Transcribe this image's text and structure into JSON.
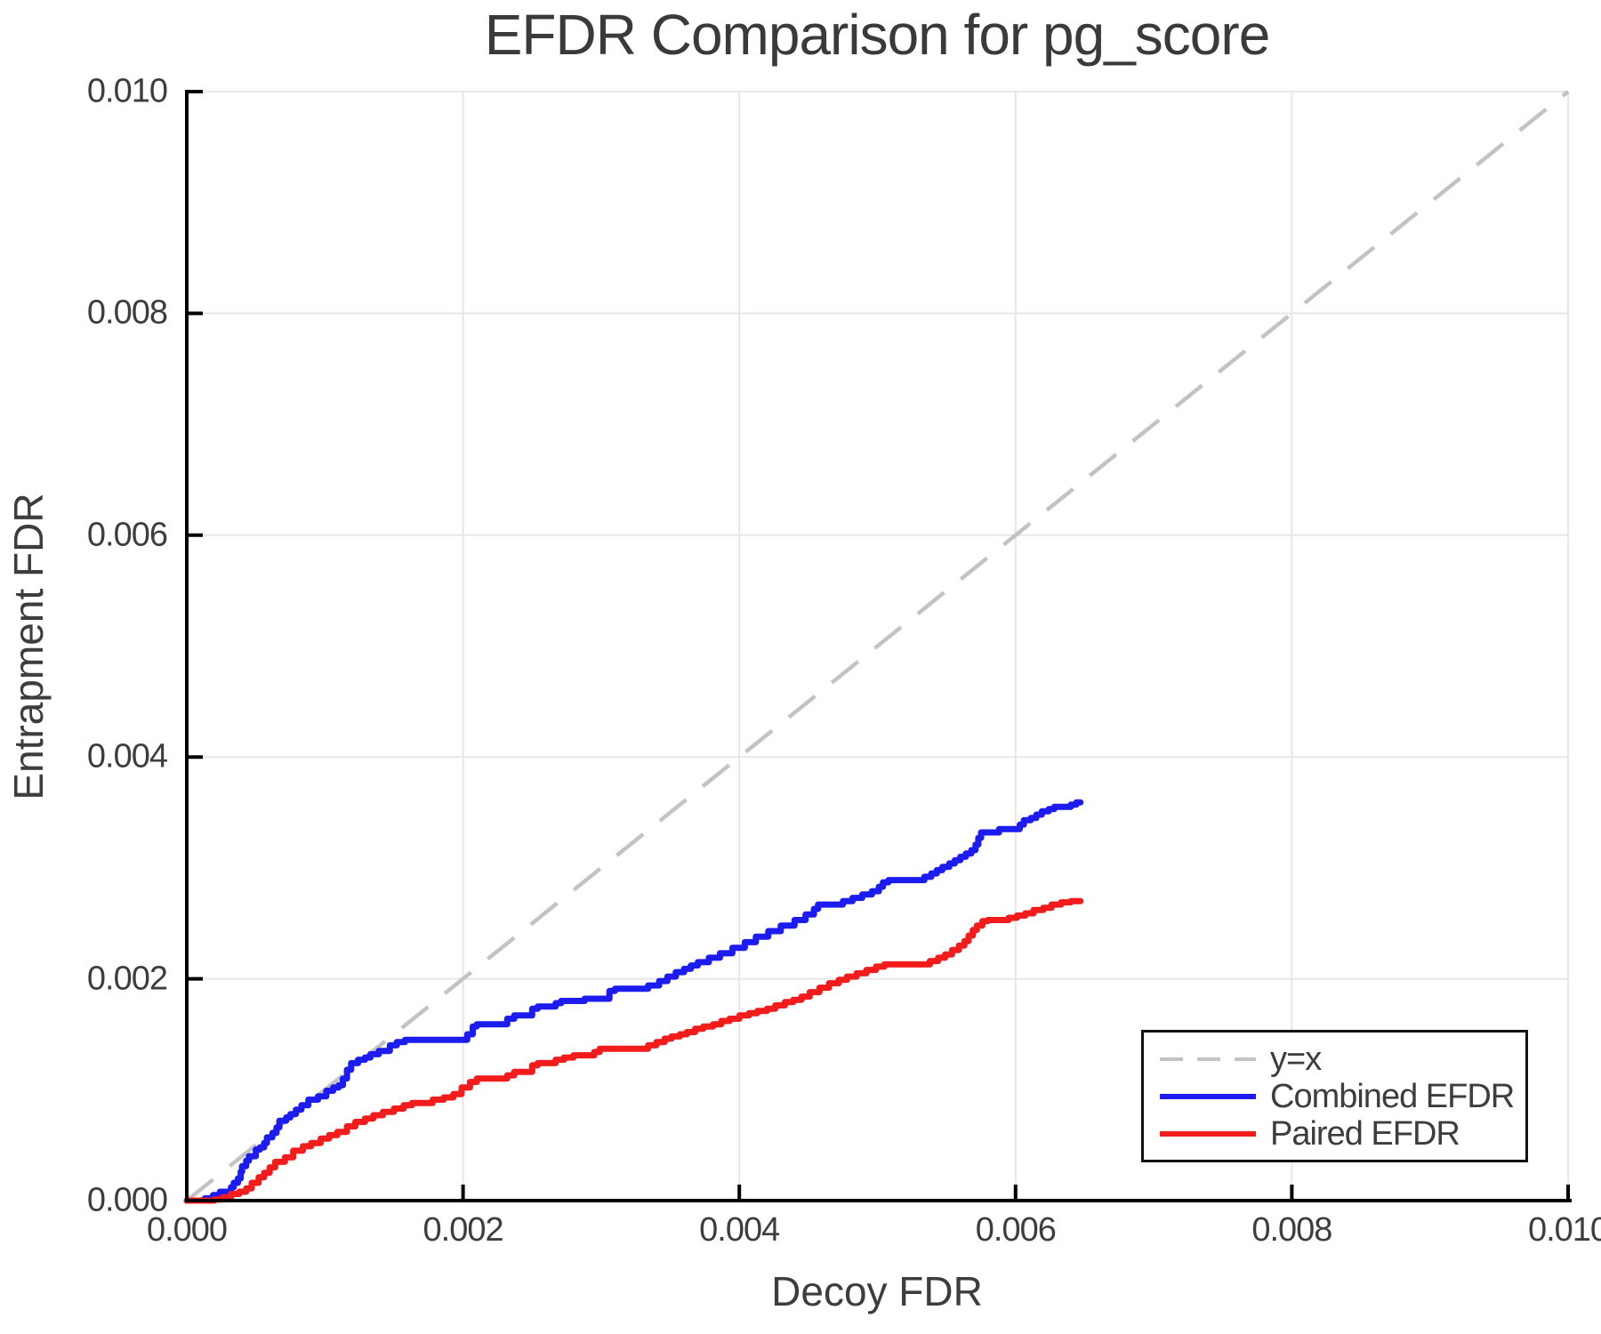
{
  "title": "EFDR Comparison for pg_score",
  "colors": {
    "background": "#ffffff",
    "grid": "#e7e7e7",
    "spine": "#000000",
    "tick": "#000000",
    "text": "#3d3d3d",
    "identity": "#c3c3c3",
    "combined": "#1c1cf0",
    "paired": "#f21c1c",
    "legend_border": "#111111"
  },
  "legend": {
    "position": "lower right",
    "entries": [
      {
        "label": "y=x",
        "color": "#c3c3c3",
        "dash": true
      },
      {
        "label": "Combined EFDR",
        "color": "#1c1cf0",
        "dash": false
      },
      {
        "label": "Paired EFDR",
        "color": "#f21c1c",
        "dash": false
      }
    ]
  },
  "chart_data": {
    "type": "line",
    "title": "EFDR Comparison for pg_score",
    "xlabel": "Decoy FDR",
    "ylabel": "Entrapment FDR",
    "xlim": [
      0.0,
      0.01
    ],
    "ylim": [
      0.0,
      0.01
    ],
    "xticks": [
      0.0,
      0.002,
      0.004,
      0.006,
      0.008,
      0.01
    ],
    "yticks": [
      0.0,
      0.002,
      0.004,
      0.006,
      0.008,
      0.01
    ],
    "xtick_labels": [
      "0.000",
      "0.002",
      "0.004",
      "0.006",
      "0.008",
      "0.010"
    ],
    "ytick_labels": [
      "0.000",
      "0.002",
      "0.004",
      "0.006",
      "0.008",
      "0.010"
    ],
    "grid": true,
    "legend_position": "lower right",
    "identity_line": {
      "name": "y=x",
      "color": "#c3c3c3",
      "dash": true,
      "points": [
        [
          0.0,
          0.0
        ],
        [
          0.01,
          0.01
        ]
      ]
    },
    "series": [
      {
        "name": "Combined EFDR",
        "color": "#1c1cf0",
        "step": true,
        "points": [
          [
            0.0,
            0.0
          ],
          [
            0.00013,
            2e-05
          ],
          [
            0.00019,
            5e-05
          ],
          [
            0.00024,
            8e-05
          ],
          [
            0.00032,
            0.00012
          ],
          [
            0.00034,
            0.00016
          ],
          [
            0.00037,
            0.0002
          ],
          [
            0.00039,
            0.00026
          ],
          [
            0.0004,
            0.00031
          ],
          [
            0.00043,
            0.00036
          ],
          [
            0.00045,
            0.0004
          ],
          [
            0.0005,
            0.00046
          ],
          [
            0.00053,
            0.00048
          ],
          [
            0.00056,
            0.00052
          ],
          [
            0.00058,
            0.00057
          ],
          [
            0.00062,
            0.00061
          ],
          [
            0.00065,
            0.00066
          ],
          [
            0.00067,
            0.00072
          ],
          [
            0.00072,
            0.00075
          ],
          [
            0.00075,
            0.00078
          ],
          [
            0.00079,
            0.00082
          ],
          [
            0.00083,
            0.00086
          ],
          [
            0.00088,
            0.00091
          ],
          [
            0.00095,
            0.00094
          ],
          [
            0.00101,
            0.00099
          ],
          [
            0.00106,
            0.00102
          ],
          [
            0.0011,
            0.00104
          ],
          [
            0.00113,
            0.0011
          ],
          [
            0.00116,
            0.00118
          ],
          [
            0.00119,
            0.00124
          ],
          [
            0.00124,
            0.00127
          ],
          [
            0.00129,
            0.00129
          ],
          [
            0.00133,
            0.00132
          ],
          [
            0.00139,
            0.00135
          ],
          [
            0.00147,
            0.0014
          ],
          [
            0.00152,
            0.00143
          ],
          [
            0.00158,
            0.00145
          ],
          [
            0.00203,
            0.0015
          ],
          [
            0.00207,
            0.00157
          ],
          [
            0.0021,
            0.00159
          ],
          [
            0.00232,
            0.00164
          ],
          [
            0.00237,
            0.00167
          ],
          [
            0.0025,
            0.00173
          ],
          [
            0.00254,
            0.00175
          ],
          [
            0.00267,
            0.00178
          ],
          [
            0.00271,
            0.0018
          ],
          [
            0.00288,
            0.00182
          ],
          [
            0.00306,
            0.00189
          ],
          [
            0.0031,
            0.00191
          ],
          [
            0.00334,
            0.00194
          ],
          [
            0.00342,
            0.00198
          ],
          [
            0.00348,
            0.00202
          ],
          [
            0.00354,
            0.00206
          ],
          [
            0.0036,
            0.00209
          ],
          [
            0.00365,
            0.00212
          ],
          [
            0.0037,
            0.00215
          ],
          [
            0.00378,
            0.00219
          ],
          [
            0.00386,
            0.00223
          ],
          [
            0.00395,
            0.00228
          ],
          [
            0.00404,
            0.00233
          ],
          [
            0.00412,
            0.00238
          ],
          [
            0.00421,
            0.00243
          ],
          [
            0.0043,
            0.00248
          ],
          [
            0.0044,
            0.00253
          ],
          [
            0.00448,
            0.00258
          ],
          [
            0.00454,
            0.00263
          ],
          [
            0.00457,
            0.00267
          ],
          [
            0.00475,
            0.0027
          ],
          [
            0.00482,
            0.00273
          ],
          [
            0.00489,
            0.00276
          ],
          [
            0.00496,
            0.00279
          ],
          [
            0.00501,
            0.00283
          ],
          [
            0.00504,
            0.00287
          ],
          [
            0.00508,
            0.00289
          ],
          [
            0.00534,
            0.00292
          ],
          [
            0.00539,
            0.00295
          ],
          [
            0.00543,
            0.00298
          ],
          [
            0.00547,
            0.00301
          ],
          [
            0.00552,
            0.00304
          ],
          [
            0.00556,
            0.00307
          ],
          [
            0.0056,
            0.0031
          ],
          [
            0.00564,
            0.00313
          ],
          [
            0.00568,
            0.00316
          ],
          [
            0.00571,
            0.00321
          ],
          [
            0.00573,
            0.00327
          ],
          [
            0.00575,
            0.00332
          ],
          [
            0.00588,
            0.00335
          ],
          [
            0.00603,
            0.00339
          ],
          [
            0.00606,
            0.00343
          ],
          [
            0.00611,
            0.00345
          ],
          [
            0.00615,
            0.00348
          ],
          [
            0.00619,
            0.00351
          ],
          [
            0.00624,
            0.00353
          ],
          [
            0.00628,
            0.00355
          ],
          [
            0.0064,
            0.00357
          ],
          [
            0.00644,
            0.00359
          ],
          [
            0.00647,
            0.00359
          ]
        ]
      },
      {
        "name": "Paired EFDR",
        "color": "#f21c1c",
        "step": true,
        "points": [
          [
            0.0,
            0.0
          ],
          [
            0.0002,
            1e-05
          ],
          [
            0.00026,
            3e-05
          ],
          [
            0.00032,
            6e-05
          ],
          [
            0.00038,
            8e-05
          ],
          [
            0.00043,
            0.00011
          ],
          [
            0.00047,
            0.00016
          ],
          [
            0.00052,
            0.00021
          ],
          [
            0.00056,
            0.00025
          ],
          [
            0.0006,
            0.0003
          ],
          [
            0.00064,
            0.00035
          ],
          [
            0.00071,
            0.00039
          ],
          [
            0.00077,
            0.00045
          ],
          [
            0.00084,
            0.00049
          ],
          [
            0.0009,
            0.00052
          ],
          [
            0.00097,
            0.00056
          ],
          [
            0.00103,
            0.00059
          ],
          [
            0.00109,
            0.00062
          ],
          [
            0.00116,
            0.00067
          ],
          [
            0.00122,
            0.00071
          ],
          [
            0.00129,
            0.00074
          ],
          [
            0.00135,
            0.00077
          ],
          [
            0.00142,
            0.0008
          ],
          [
            0.0015,
            0.00083
          ],
          [
            0.00157,
            0.00086
          ],
          [
            0.00163,
            0.00088
          ],
          [
            0.00178,
            0.00091
          ],
          [
            0.00186,
            0.00093
          ],
          [
            0.00193,
            0.00096
          ],
          [
            0.00199,
            0.00102
          ],
          [
            0.00205,
            0.00107
          ],
          [
            0.0021,
            0.0011
          ],
          [
            0.00232,
            0.00113
          ],
          [
            0.00237,
            0.00116
          ],
          [
            0.0025,
            0.00122
          ],
          [
            0.00254,
            0.00124
          ],
          [
            0.00267,
            0.00127
          ],
          [
            0.00273,
            0.00129
          ],
          [
            0.0028,
            0.00131
          ],
          [
            0.00295,
            0.00134
          ],
          [
            0.00299,
            0.00137
          ],
          [
            0.00334,
            0.0014
          ],
          [
            0.0034,
            0.00143
          ],
          [
            0.00346,
            0.00146
          ],
          [
            0.00351,
            0.00148
          ],
          [
            0.00357,
            0.0015
          ],
          [
            0.00362,
            0.00152
          ],
          [
            0.00368,
            0.00155
          ],
          [
            0.00374,
            0.00157
          ],
          [
            0.00381,
            0.00159
          ],
          [
            0.00387,
            0.00162
          ],
          [
            0.00393,
            0.00164
          ],
          [
            0.004,
            0.00167
          ],
          [
            0.00407,
            0.00169
          ],
          [
            0.00413,
            0.00171
          ],
          [
            0.0042,
            0.00173
          ],
          [
            0.00426,
            0.00176
          ],
          [
            0.00433,
            0.00179
          ],
          [
            0.00439,
            0.00181
          ],
          [
            0.00445,
            0.00184
          ],
          [
            0.00451,
            0.00188
          ],
          [
            0.00458,
            0.00192
          ],
          [
            0.00465,
            0.00196
          ],
          [
            0.00472,
            0.00199
          ],
          [
            0.00478,
            0.00202
          ],
          [
            0.00485,
            0.00205
          ],
          [
            0.00492,
            0.00208
          ],
          [
            0.00499,
            0.00211
          ],
          [
            0.00505,
            0.00213
          ],
          [
            0.00538,
            0.00216
          ],
          [
            0.00544,
            0.00219
          ],
          [
            0.00549,
            0.00222
          ],
          [
            0.00554,
            0.00226
          ],
          [
            0.00559,
            0.0023
          ],
          [
            0.00563,
            0.00234
          ],
          [
            0.00566,
            0.00239
          ],
          [
            0.00569,
            0.00244
          ],
          [
            0.00572,
            0.00248
          ],
          [
            0.00576,
            0.00252
          ],
          [
            0.0058,
            0.00253
          ],
          [
            0.00595,
            0.00255
          ],
          [
            0.00601,
            0.00257
          ],
          [
            0.00607,
            0.00259
          ],
          [
            0.00613,
            0.00262
          ],
          [
            0.0062,
            0.00264
          ],
          [
            0.00626,
            0.00267
          ],
          [
            0.00633,
            0.00269
          ],
          [
            0.0064,
            0.0027
          ],
          [
            0.00647,
            0.0027
          ]
        ]
      }
    ]
  }
}
